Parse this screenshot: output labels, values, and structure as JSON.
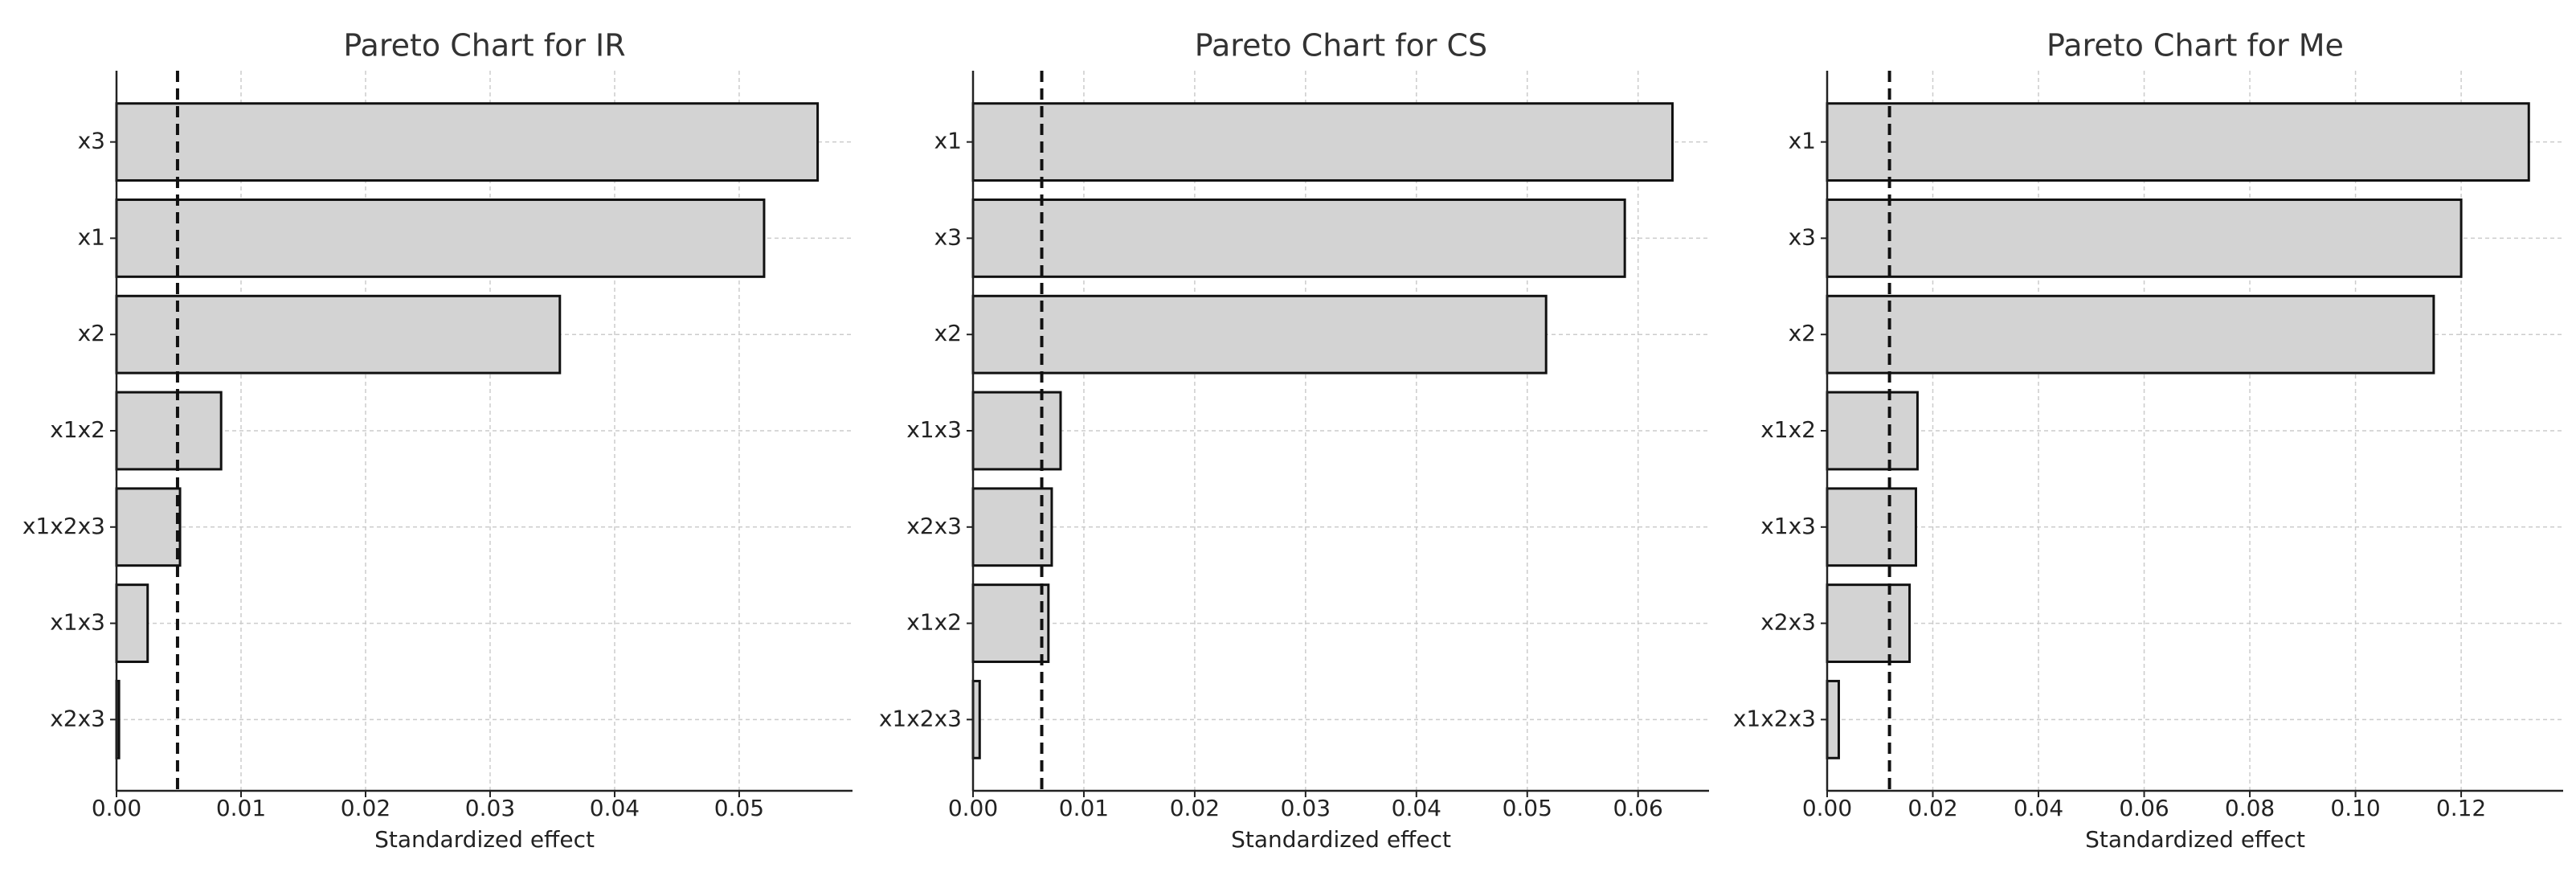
{
  "chart_data": [
    {
      "type": "barh",
      "title": "Pareto Chart for IR",
      "x_label": "Standardized effect",
      "categories": [
        "x3",
        "x1",
        "x2",
        "x1x2",
        "x1x2x3",
        "x1x3",
        "x2x3"
      ],
      "values": [
        0.0563,
        0.052,
        0.0356,
        0.0084,
        0.0051,
        0.0025,
        0.0002
      ],
      "color": "#d3d3d3",
      "reference_line": 0.0049,
      "grid": true,
      "xlim": [
        0,
        0.0591
      ],
      "xticks": [
        {
          "value": 0,
          "label": "0.00"
        },
        {
          "value": 0.01,
          "label": "0.01"
        },
        {
          "value": 0.02,
          "label": "0.02"
        },
        {
          "value": 0.03,
          "label": "0.03"
        },
        {
          "value": 0.04,
          "label": "0.04"
        },
        {
          "value": 0.05,
          "label": "0.05"
        }
      ]
    },
    {
      "type": "barh",
      "title": "Pareto Chart for CS",
      "x_label": "Standardized effect",
      "categories": [
        "x1",
        "x3",
        "x2",
        "x1x3",
        "x2x3",
        "x1x2",
        "x1x2x3"
      ],
      "values": [
        0.0631,
        0.0588,
        0.0517,
        0.0079,
        0.0071,
        0.0068,
        0.0006
      ],
      "color": "#d3d3d3",
      "reference_line": 0.0062,
      "grid": true,
      "xlim": [
        0,
        0.0664
      ],
      "xticks": [
        {
          "value": 0,
          "label": "0.00"
        },
        {
          "value": 0.01,
          "label": "0.01"
        },
        {
          "value": 0.02,
          "label": "0.02"
        },
        {
          "value": 0.03,
          "label": "0.03"
        },
        {
          "value": 0.04,
          "label": "0.04"
        },
        {
          "value": 0.05,
          "label": "0.05"
        },
        {
          "value": 0.06,
          "label": "0.06"
        }
      ]
    },
    {
      "type": "barh",
      "title": "Pareto Chart for Me",
      "x_label": "Standardized effect",
      "categories": [
        "x1",
        "x3",
        "x2",
        "x1x2",
        "x1x3",
        "x2x3",
        "x1x2x3"
      ],
      "values": [
        0.1328,
        0.12,
        0.1148,
        0.0171,
        0.0168,
        0.0156,
        0.0022
      ],
      "color": "#d3d3d3",
      "reference_line": 0.0118,
      "grid": true,
      "xlim": [
        0,
        0.1393
      ],
      "xticks": [
        {
          "value": 0,
          "label": "0.00"
        },
        {
          "value": 0.02,
          "label": "0.02"
        },
        {
          "value": 0.04,
          "label": "0.04"
        },
        {
          "value": 0.06,
          "label": "0.06"
        },
        {
          "value": 0.08,
          "label": "0.08"
        },
        {
          "value": 0.1,
          "label": "0.10"
        },
        {
          "value": 0.12,
          "label": "0.12"
        }
      ]
    }
  ]
}
